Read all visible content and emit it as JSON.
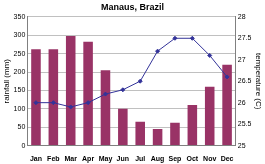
{
  "chart_data": {
    "type": "bar",
    "title": "Manaus, Brazil",
    "categories": [
      "Jan",
      "Feb",
      "Mar",
      "Apr",
      "May",
      "Jun",
      "Jul",
      "Aug",
      "Sep",
      "Oct",
      "Nov",
      "Dec"
    ],
    "series": [
      {
        "name": "rainfall",
        "type": "bar",
        "color": "#993366",
        "values": [
          262,
          262,
          298,
          282,
          205,
          100,
          65,
          45,
          62,
          110,
          160,
          220
        ]
      },
      {
        "name": "temperature",
        "type": "line",
        "axis": "y2",
        "color": "#333399",
        "marker": "diamond",
        "values": [
          26.0,
          26.0,
          25.9,
          26.0,
          26.2,
          26.3,
          26.5,
          27.2,
          27.5,
          27.5,
          27.1,
          26.6
        ]
      }
    ],
    "ylabel": "rainfall (mm)",
    "y2label": "temperature (C)",
    "ylim": [
      0,
      350
    ],
    "yticks": [
      0,
      50,
      100,
      150,
      200,
      250,
      300,
      350
    ],
    "y2lim": [
      25,
      28
    ],
    "y2ticks": [
      25,
      25.5,
      26,
      26.5,
      27,
      27.5,
      28
    ],
    "grid": true
  }
}
